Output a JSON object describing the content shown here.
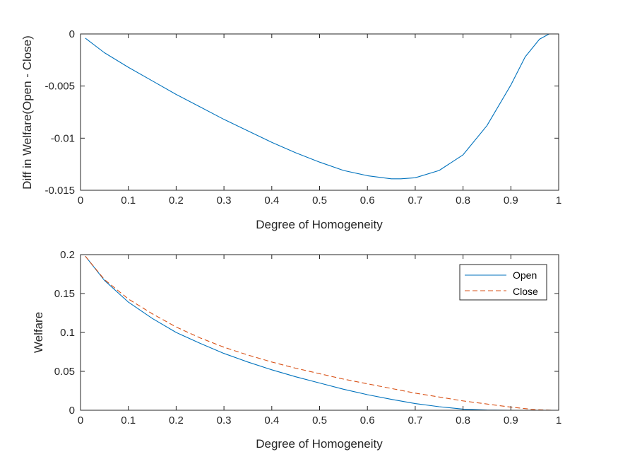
{
  "chart_data": [
    {
      "type": "line",
      "xlabel": "Degree of Homogeneity",
      "ylabel": "Diff in Welfare(Open - Close)",
      "xlim": [
        0,
        1
      ],
      "ylim": [
        -0.015,
        0
      ],
      "xticks": [
        "0",
        "0.1",
        "0.2",
        "0.3",
        "0.4",
        "0.5",
        "0.6",
        "0.7",
        "0.8",
        "0.9",
        "1"
      ],
      "yticks": [
        "0",
        "-0.005",
        "-0.01",
        "-0.015"
      ],
      "grid": false,
      "series": [
        {
          "color": "#0072BD",
          "dash": "solid",
          "x": [
            0.01,
            0.05,
            0.1,
            0.15,
            0.2,
            0.25,
            0.3,
            0.35,
            0.4,
            0.45,
            0.5,
            0.55,
            0.6,
            0.65,
            0.67,
            0.7,
            0.75,
            0.8,
            0.85,
            0.9,
            0.93,
            0.96,
            0.98,
            0.99
          ],
          "y": [
            -0.0004,
            -0.0018,
            -0.0032,
            -0.0045,
            -0.0058,
            -0.007,
            -0.0082,
            -0.0093,
            -0.0104,
            -0.0114,
            -0.0123,
            -0.0131,
            -0.0136,
            -0.0139,
            -0.0139,
            -0.0138,
            -0.0131,
            -0.0116,
            -0.0088,
            -0.0049,
            -0.0022,
            -0.0005,
            0.0,
            0.0
          ]
        },
        {
          "color": "#D95319",
          "dash": "dashed",
          "x": [
            0.01,
            0.99
          ],
          "y": [
            0.0,
            0.0
          ]
        }
      ]
    },
    {
      "type": "line",
      "xlabel": "Degree of Homogeneity",
      "ylabel": "Welfare",
      "xlim": [
        0,
        1
      ],
      "ylim": [
        0,
        0.2
      ],
      "xticks": [
        "0",
        "0.1",
        "0.2",
        "0.3",
        "0.4",
        "0.5",
        "0.6",
        "0.7",
        "0.8",
        "0.9",
        "1"
      ],
      "yticks": [
        "0",
        "0.05",
        "0.1",
        "0.15",
        "0.2"
      ],
      "grid": false,
      "legend": "top-right",
      "series": [
        {
          "name": "Open",
          "color": "#0072BD",
          "dash": "solid",
          "x": [
            0.01,
            0.05,
            0.1,
            0.15,
            0.2,
            0.25,
            0.3,
            0.35,
            0.4,
            0.45,
            0.5,
            0.55,
            0.6,
            0.65,
            0.7,
            0.75,
            0.8,
            0.85,
            0.9,
            0.95,
            0.99
          ],
          "y": [
            0.198,
            0.167,
            0.139,
            0.118,
            0.1,
            0.086,
            0.073,
            0.062,
            0.052,
            0.043,
            0.035,
            0.027,
            0.02,
            0.014,
            0.0085,
            0.0045,
            0.0015,
            0.0003,
            0.0,
            0.0,
            0.0
          ]
        },
        {
          "name": "Close",
          "color": "#D95319",
          "dash": "dashed",
          "x": [
            0.01,
            0.05,
            0.1,
            0.15,
            0.2,
            0.25,
            0.3,
            0.35,
            0.4,
            0.45,
            0.5,
            0.55,
            0.6,
            0.65,
            0.7,
            0.75,
            0.8,
            0.85,
            0.9,
            0.95,
            0.99
          ],
          "y": [
            0.198,
            0.168,
            0.143,
            0.124,
            0.107,
            0.093,
            0.081,
            0.071,
            0.062,
            0.054,
            0.047,
            0.04,
            0.034,
            0.028,
            0.022,
            0.017,
            0.012,
            0.008,
            0.004,
            0.0008,
            0.0
          ]
        }
      ]
    }
  ]
}
